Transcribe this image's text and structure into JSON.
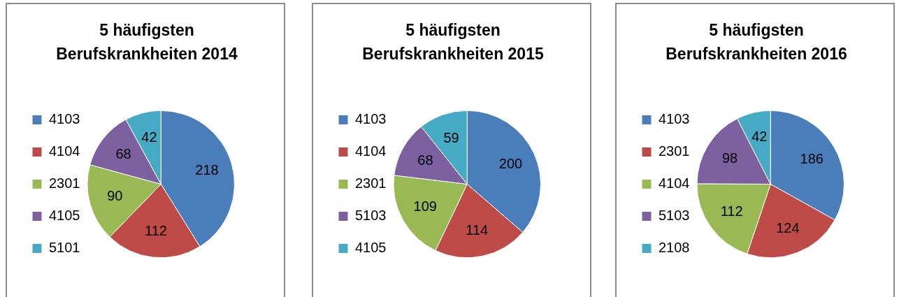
{
  "chart_data": [
    {
      "type": "pie",
      "title": "5 häufigsten Berufskrankheiten 2014",
      "categories": [
        "4103",
        "4104",
        "2301",
        "4105",
        "5101"
      ],
      "values": [
        218,
        112,
        90,
        68,
        42
      ],
      "colors": [
        "#4a7ebb",
        "#be4b48",
        "#98b954",
        "#7d60a0",
        "#46aac5"
      ],
      "data_labels": true,
      "legend": "left"
    },
    {
      "type": "pie",
      "title": "5 häufigsten Berufskrankheiten 2015",
      "categories": [
        "4103",
        "4104",
        "2301",
        "5103",
        "4105"
      ],
      "values": [
        200,
        114,
        109,
        68,
        59
      ],
      "colors": [
        "#4a7ebb",
        "#be4b48",
        "#98b954",
        "#7d60a0",
        "#46aac5"
      ],
      "data_labels": true,
      "legend": "left"
    },
    {
      "type": "pie",
      "title": "5 häufigsten Berufskrankheiten 2016",
      "categories": [
        "4103",
        "2301",
        "4104",
        "5103",
        "2108"
      ],
      "values": [
        186,
        124,
        112,
        98,
        42
      ],
      "colors": [
        "#4a7ebb",
        "#be4b48",
        "#98b954",
        "#7d60a0",
        "#46aac5"
      ],
      "data_labels": true,
      "legend": "left"
    }
  ]
}
